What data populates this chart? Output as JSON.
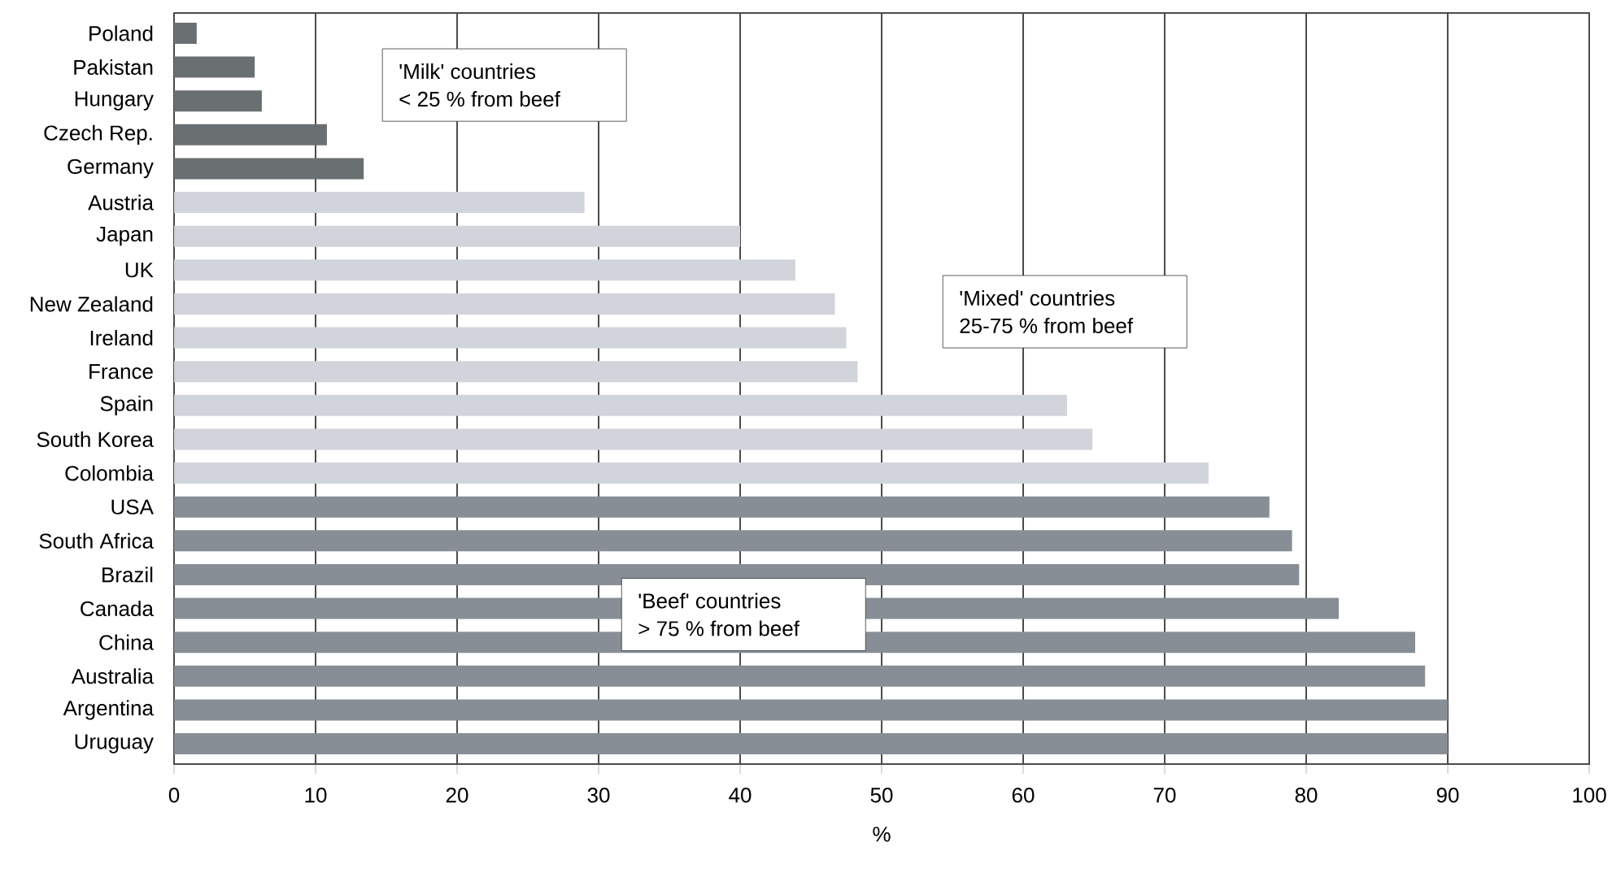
{
  "chart_data": {
    "type": "bar",
    "orientation": "horizontal",
    "xlabel": "%",
    "categories": [
      "Poland",
      "Pakistan",
      "Hungary",
      "Czech Rep.",
      "Germany",
      "Austria",
      "Japan",
      "UK",
      "New Zealand",
      "Ireland",
      "France",
      "Spain",
      "South Korea",
      "Colombia",
      "USA",
      "South Africa",
      "Brazil",
      "Canada",
      "China",
      "Australia",
      "Argentina",
      "Uruguay"
    ],
    "values": [
      1.6,
      5.7,
      6.2,
      10.8,
      13.4,
      29.0,
      40.0,
      43.9,
      46.7,
      47.5,
      48.3,
      63.1,
      64.9,
      73.1,
      77.4,
      79.0,
      79.5,
      82.3,
      87.7,
      88.4,
      90.0,
      90.0
    ],
    "colors": [
      "#6a6f72",
      "#6a6f72",
      "#6a6f72",
      "#6a6f72",
      "#6a6f72",
      "#d1d4da",
      "#d1d4da",
      "#d1d4da",
      "#d1d4da",
      "#d1d4da",
      "#d1d4da",
      "#d1d4da",
      "#d1d4da",
      "#d1d4da",
      "#878e95",
      "#878e95",
      "#878e95",
      "#878e95",
      "#878e95",
      "#878e95",
      "#878e95",
      "#878e95"
    ],
    "xlim": [
      0,
      100
    ],
    "xticks": [
      0,
      10,
      20,
      30,
      40,
      50,
      60,
      70,
      80,
      90,
      100
    ],
    "grid": "x",
    "annotations": [
      "'Milk' countries\n< 25 % from beef",
      "'Mixed' countries\n25-75 % from beef",
      "'Beef' countries\n> 75 % from beef"
    ]
  }
}
